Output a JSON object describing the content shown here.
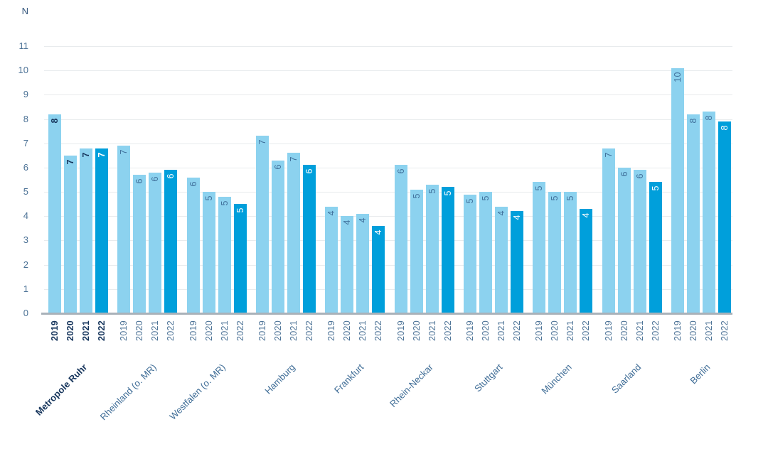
{
  "chart_data": {
    "type": "bar",
    "title": "",
    "xlabel": "",
    "ylabel": "N",
    "ylim": [
      0,
      11
    ],
    "yticks": [
      0,
      1,
      2,
      3,
      4,
      5,
      6,
      7,
      8,
      9,
      10,
      11
    ],
    "grid": true,
    "legend_position": "none",
    "years": [
      "2019",
      "2020",
      "2021",
      "2022"
    ],
    "groups": [
      {
        "name": "Metropole Ruhr",
        "emphasis": true,
        "values": [
          8.2,
          6.5,
          6.8,
          6.8
        ],
        "labels": [
          "8",
          "7",
          "7",
          "7"
        ]
      },
      {
        "name": "Rheinland (o. MR)",
        "emphasis": false,
        "values": [
          6.9,
          5.7,
          5.8,
          5.9
        ],
        "labels": [
          "7",
          "6",
          "6",
          "6"
        ]
      },
      {
        "name": "Westfalen (o. MR)",
        "emphasis": false,
        "values": [
          5.6,
          5.0,
          4.8,
          4.5
        ],
        "labels": [
          "6",
          "5",
          "5",
          "5"
        ]
      },
      {
        "name": "Hamburg",
        "emphasis": false,
        "values": [
          7.3,
          6.3,
          6.6,
          6.1
        ],
        "labels": [
          "7",
          "6",
          "7",
          "6"
        ]
      },
      {
        "name": "Frankfurt",
        "emphasis": false,
        "values": [
          4.4,
          4.0,
          4.1,
          3.6
        ],
        "labels": [
          "4",
          "4",
          "4",
          "4"
        ]
      },
      {
        "name": "Rhein-Neckar",
        "emphasis": false,
        "values": [
          6.1,
          5.1,
          5.3,
          5.2
        ],
        "labels": [
          "6",
          "5",
          "5",
          "5"
        ]
      },
      {
        "name": "Stuttgart",
        "emphasis": false,
        "values": [
          4.9,
          5.0,
          4.4,
          4.2
        ],
        "labels": [
          "5",
          "5",
          "4",
          "4"
        ]
      },
      {
        "name": "München",
        "emphasis": false,
        "values": [
          5.4,
          5.0,
          5.0,
          4.3
        ],
        "labels": [
          "5",
          "5",
          "5",
          "4"
        ]
      },
      {
        "name": "Saarland",
        "emphasis": false,
        "values": [
          6.8,
          6.0,
          5.9,
          5.4
        ],
        "labels": [
          "7",
          "6",
          "6",
          "5"
        ]
      },
      {
        "name": "Berlin",
        "emphasis": false,
        "values": [
          10.1,
          8.2,
          8.3,
          7.9
        ],
        "labels": [
          "10",
          "8",
          "8",
          "8"
        ]
      }
    ],
    "colors": {
      "bar_2019_2021": "#8cd2ef",
      "bar_2022": "#009fdb",
      "label_on_light": "#40709b",
      "label_on_dark": "#ffffff",
      "emphasis_text": "#16355c",
      "axis_text": "#4c7296",
      "gridline": "#e8ebed",
      "baseline": "#a9b2b9",
      "background": "#ffffff"
    }
  }
}
